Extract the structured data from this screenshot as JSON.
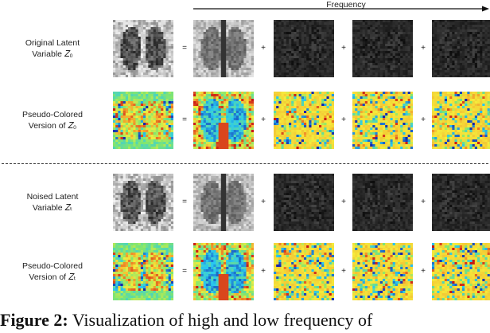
{
  "header": {
    "axis_label": "Frequency"
  },
  "rows": [
    {
      "label_line1": "Original Latent",
      "label_line2": "Variable 𝑍₀",
      "style": "gray"
    },
    {
      "label_line1": "Pseudo-Colored",
      "label_line2": "Version of 𝑍₀",
      "style": "jet"
    },
    {
      "label_line1": "Noised Latent",
      "label_line2": "Variable 𝑍ₜ",
      "style": "gray"
    },
    {
      "label_line1": "Pseudo-Colored",
      "label_line2": "Version of 𝑍ₜ",
      "style": "jet"
    }
  ],
  "operators": {
    "equals": "=",
    "plus": "+"
  },
  "caption": {
    "fig": "Figure 2:",
    "text": " Visualization of high and low frequency of"
  },
  "colors": {
    "jet_blue": "#1a2cc7",
    "jet_cyan": "#2ad8f0",
    "jet_yellow": "#f5ec3a",
    "jet_red": "#d81a1a",
    "jet_green": "#74e86a"
  }
}
